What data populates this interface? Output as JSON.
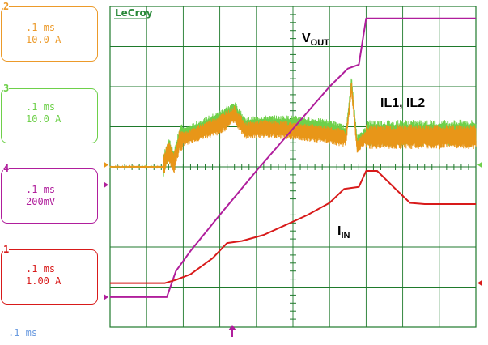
{
  "brand": "LeCroy",
  "channels": [
    {
      "id": "c2",
      "num": "2",
      "time": ".1 ms",
      "scale": "10.0 A",
      "color": "#ec9a2a"
    },
    {
      "id": "c3",
      "num": "3",
      "time": ".1 ms",
      "scale": "10.0 A",
      "color": "#6ed04a"
    },
    {
      "id": "c4",
      "num": "4",
      "time": ".1 ms",
      "scale": "200mV",
      "color": "#b01e9c"
    },
    {
      "id": "c1",
      "num": "1",
      "time": ".1 ms",
      "scale": "1.00 A",
      "color": "#d81a1a"
    }
  ],
  "timebase": ".1 ms",
  "chart_data": {
    "type": "line",
    "grid": true,
    "divisions": {
      "x": 10,
      "y": 8
    },
    "annotations": {
      "vout": {
        "main": "V",
        "sub": "OUT"
      },
      "il": "IL1, IL2",
      "iin": {
        "main": "I",
        "sub": "IN"
      }
    },
    "series": [
      {
        "id": "vout",
        "color": "#b01e9c",
        "x": [
          0,
          1.55,
          1.8,
          2.2,
          3.0,
          4.0,
          5.0,
          6.0,
          6.5,
          6.8,
          7.0,
          8.0,
          9.0,
          10.0
        ],
        "y": [
          0.75,
          0.75,
          1.4,
          1.9,
          2.8,
          3.9,
          4.95,
          6.0,
          6.45,
          6.55,
          7.7,
          7.7,
          7.7,
          7.7
        ]
      },
      {
        "id": "iin",
        "color": "#d81a1a",
        "x": [
          0,
          1.5,
          1.8,
          2.2,
          2.8,
          3.2,
          3.6,
          4.2,
          4.8,
          5.4,
          6.0,
          6.4,
          6.8,
          7.0,
          7.3,
          7.8,
          8.2,
          8.6,
          9.0,
          10.0
        ],
        "y": [
          1.1,
          1.1,
          1.18,
          1.32,
          1.72,
          2.1,
          2.15,
          2.3,
          2.55,
          2.8,
          3.1,
          3.45,
          3.5,
          3.9,
          3.9,
          3.45,
          3.1,
          3.07,
          3.07,
          3.07
        ]
      },
      {
        "id": "il_green",
        "color": "#6ed04a",
        "x": [
          0,
          1.45,
          1.6,
          1.75,
          1.9,
          2.3,
          3.0,
          3.4,
          3.7,
          4.2,
          5.0,
          6.0,
          6.45,
          6.6,
          6.75,
          7.0,
          8.0,
          9.0,
          10.0
        ],
        "y": [
          4.0,
          4.0,
          4.45,
          4.15,
          4.75,
          4.9,
          5.15,
          5.4,
          5.0,
          5.05,
          5.05,
          4.95,
          4.8,
          6.1,
          4.6,
          4.85,
          4.85,
          4.85,
          4.85
        ]
      },
      {
        "id": "il_orange",
        "color": "#e89618",
        "x": [
          0,
          1.45,
          1.6,
          1.75,
          1.9,
          2.3,
          3.0,
          3.4,
          3.7,
          4.2,
          5.0,
          6.0,
          6.45,
          6.6,
          6.75,
          7.0,
          8.0,
          9.0,
          10.0
        ],
        "y": [
          4.0,
          4.0,
          4.4,
          4.1,
          4.65,
          4.8,
          5.05,
          5.3,
          4.9,
          4.95,
          4.9,
          4.8,
          4.7,
          6.0,
          4.5,
          4.75,
          4.75,
          4.75,
          4.75
        ]
      }
    ]
  }
}
